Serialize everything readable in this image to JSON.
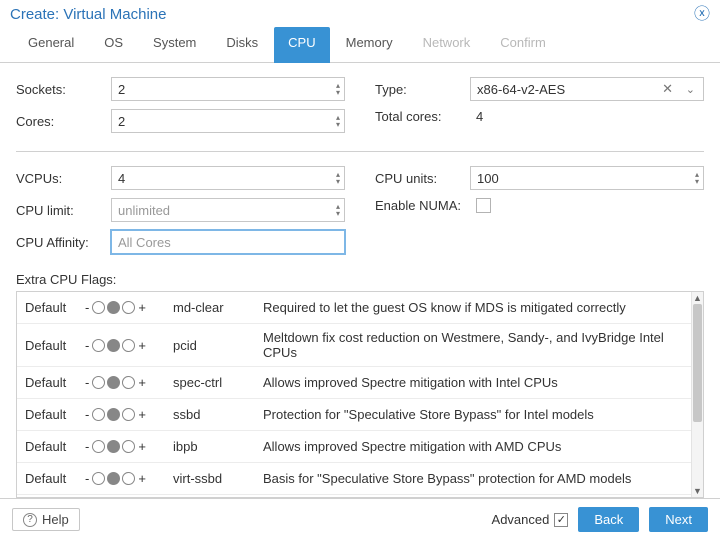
{
  "title": "Create: Virtual Machine",
  "colors": {
    "accent": "#3892d4",
    "title": "#2b73b7",
    "border": "#c7c7c7",
    "disabled_text": "#b8b8b8"
  },
  "tabs": [
    {
      "label": "General",
      "state": "normal"
    },
    {
      "label": "OS",
      "state": "normal"
    },
    {
      "label": "System",
      "state": "normal"
    },
    {
      "label": "Disks",
      "state": "normal"
    },
    {
      "label": "CPU",
      "state": "active"
    },
    {
      "label": "Memory",
      "state": "normal"
    },
    {
      "label": "Network",
      "state": "disabled"
    },
    {
      "label": "Confirm",
      "state": "disabled"
    }
  ],
  "fields": {
    "sockets": {
      "label": "Sockets:",
      "value": "2"
    },
    "cores": {
      "label": "Cores:",
      "value": "2"
    },
    "type": {
      "label": "Type:",
      "value": "x86-64-v2-AES"
    },
    "total_cores": {
      "label": "Total cores:",
      "value": "4"
    },
    "vcpus": {
      "label": "VCPUs:",
      "value": "4"
    },
    "cpu_limit": {
      "label": "CPU limit:",
      "value": "unlimited"
    },
    "cpu_affinity": {
      "label": "CPU Affinity:",
      "placeholder": "All Cores",
      "focused": true
    },
    "cpu_units": {
      "label": "CPU units:",
      "value": "100"
    },
    "enable_numa": {
      "label": "Enable NUMA:",
      "checked": false
    }
  },
  "flags": {
    "section_label": "Extra CPU Flags:",
    "state_label": "Default",
    "rows": [
      {
        "name": "md-clear",
        "desc": "Required to let the guest OS know if MDS is mitigated correctly"
      },
      {
        "name": "pcid",
        "desc": "Meltdown fix cost reduction on Westmere, Sandy-, and IvyBridge Intel CPUs"
      },
      {
        "name": "spec-ctrl",
        "desc": "Allows improved Spectre mitigation with Intel CPUs"
      },
      {
        "name": "ssbd",
        "desc": "Protection for \"Speculative Store Bypass\" for Intel models"
      },
      {
        "name": "ibpb",
        "desc": "Allows improved Spectre mitigation with AMD CPUs"
      },
      {
        "name": "virt-ssbd",
        "desc": "Basis for \"Speculative Store Bypass\" protection for AMD models"
      }
    ],
    "tri_state_selected_index": 1
  },
  "footer": {
    "help": "Help",
    "advanced": "Advanced",
    "advanced_checked": true,
    "back": "Back",
    "next": "Next"
  }
}
